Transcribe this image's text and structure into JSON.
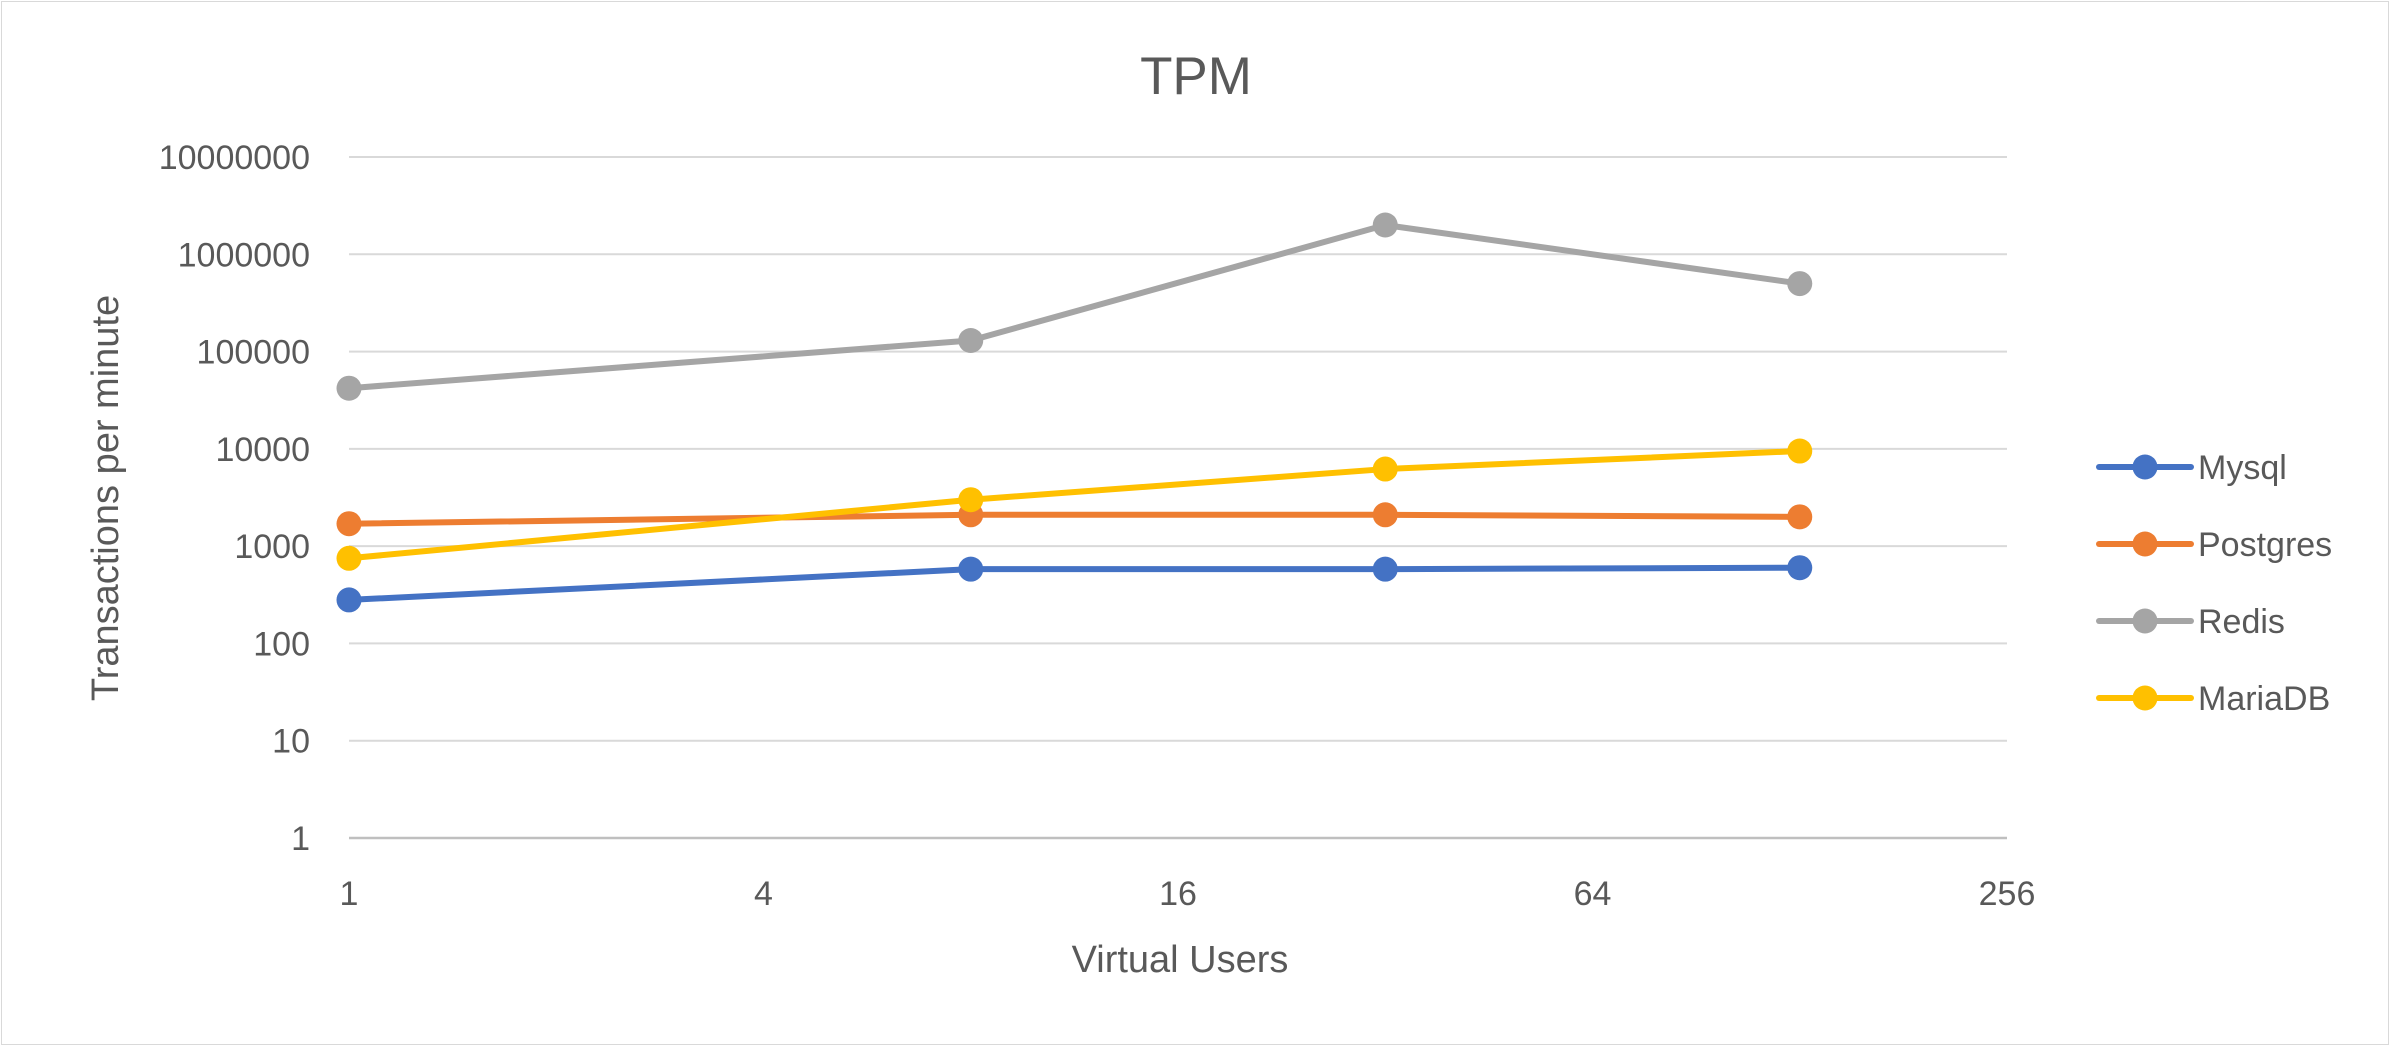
{
  "chart_data": {
    "type": "line",
    "title": "TPM",
    "xlabel": "Virtual Users",
    "ylabel": "Transactions per minute",
    "x_scale": "log2",
    "y_scale": "log10",
    "xlim": [
      1,
      256
    ],
    "ylim": [
      1,
      10000000
    ],
    "x_ticks": [
      "1",
      "4",
      "16",
      "64",
      "256"
    ],
    "y_ticks": [
      "1",
      "10",
      "100",
      "1000",
      "10000",
      "100000",
      "1000000",
      "10000000"
    ],
    "x": [
      1,
      8,
      32,
      128
    ],
    "grid": "horizontal",
    "legend_position": "right",
    "series": [
      {
        "name": "Mysql",
        "color": "#4472C4",
        "values": [
          280,
          580,
          580,
          600
        ]
      },
      {
        "name": "Postgres",
        "color": "#ED7D31",
        "values": [
          1700,
          2100,
          2100,
          2000
        ]
      },
      {
        "name": "Redis",
        "color": "#A5A5A5",
        "values": [
          42000,
          130000,
          2000000,
          500000
        ]
      },
      {
        "name": "MariaDB",
        "color": "#FFC000",
        "values": [
          750,
          3000,
          6200,
          9500
        ]
      }
    ]
  }
}
